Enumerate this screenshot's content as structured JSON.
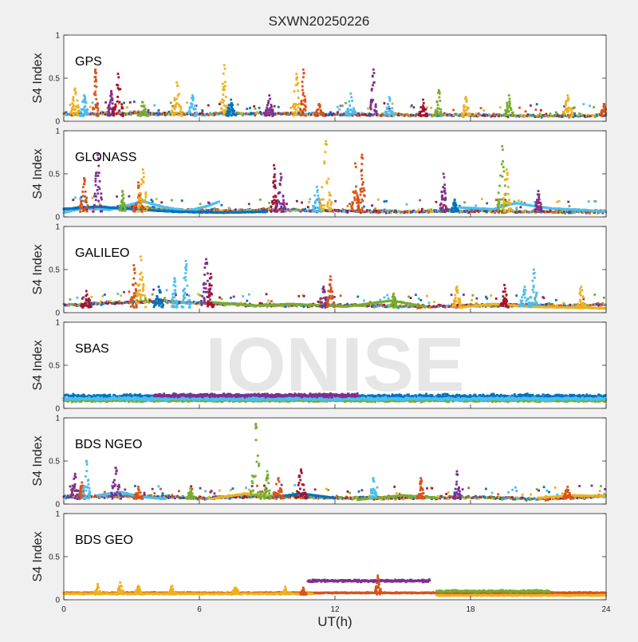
{
  "figure": {
    "title": "SXWN20250226",
    "xlabel": "UT(h)",
    "watermark": "IONISE",
    "background": "#f0f0f0",
    "axes_background": "#ffffff"
  },
  "chart_data": [
    {
      "type": "scatter",
      "panel_label": "GPS",
      "ylabel": "S4 Index",
      "xlim": [
        0,
        24
      ],
      "ylim": [
        0,
        1
      ],
      "xticks": [],
      "yticks": [
        "0",
        "0.5",
        "1"
      ],
      "grid": false,
      "colors": [
        "#0072bd",
        "#d95319",
        "#edb120",
        "#7e2f8e",
        "#77ac30",
        "#4dbeee",
        "#a2142f"
      ],
      "baseline": [
        [
          0,
          0.07
        ],
        [
          3,
          0.08
        ],
        [
          6,
          0.07
        ],
        [
          9,
          0.08
        ],
        [
          12,
          0.07
        ],
        [
          15,
          0.06
        ],
        [
          18,
          0.06
        ],
        [
          21,
          0.05
        ],
        [
          24,
          0.06
        ]
      ],
      "spikes": [
        {
          "x": 0.5,
          "peak": 0.38,
          "color": "#edb120"
        },
        {
          "x": 0.9,
          "peak": 0.3,
          "color": "#4dbeee"
        },
        {
          "x": 1.4,
          "peak": 0.6,
          "color": "#d95319"
        },
        {
          "x": 2.1,
          "peak": 0.35,
          "color": "#7e2f8e"
        },
        {
          "x": 2.4,
          "peak": 0.55,
          "color": "#a2142f"
        },
        {
          "x": 3.5,
          "peak": 0.22,
          "color": "#77ac30"
        },
        {
          "x": 5.0,
          "peak": 0.45,
          "color": "#edb120"
        },
        {
          "x": 5.7,
          "peak": 0.3,
          "color": "#4dbeee"
        },
        {
          "x": 7.1,
          "peak": 0.65,
          "color": "#edb120"
        },
        {
          "x": 7.4,
          "peak": 0.25,
          "color": "#0072bd"
        },
        {
          "x": 9.1,
          "peak": 0.3,
          "color": "#7e2f8e"
        },
        {
          "x": 10.3,
          "peak": 0.55,
          "color": "#edb120"
        },
        {
          "x": 10.6,
          "peak": 0.6,
          "color": "#d95319"
        },
        {
          "x": 11.3,
          "peak": 0.2,
          "color": "#d95319"
        },
        {
          "x": 12.7,
          "peak": 0.32,
          "color": "#4dbeee"
        },
        {
          "x": 13.7,
          "peak": 0.6,
          "color": "#7e2f8e"
        },
        {
          "x": 14.4,
          "peak": 0.28,
          "color": "#4dbeee"
        },
        {
          "x": 15.9,
          "peak": 0.25,
          "color": "#a2142f"
        },
        {
          "x": 16.6,
          "peak": 0.36,
          "color": "#77ac30"
        },
        {
          "x": 17.8,
          "peak": 0.28,
          "color": "#edb120"
        },
        {
          "x": 19.7,
          "peak": 0.3,
          "color": "#77ac30"
        },
        {
          "x": 22.3,
          "peak": 0.3,
          "color": "#edb120"
        },
        {
          "x": 23.9,
          "peak": 0.2,
          "color": "#d95319"
        }
      ],
      "smooth_curves": []
    },
    {
      "type": "scatter",
      "panel_label": "GLONASS",
      "ylabel": "S4 Index",
      "xlim": [
        0,
        24
      ],
      "ylim": [
        0,
        1
      ],
      "xticks": [],
      "yticks": [
        "0",
        "0.5",
        "1"
      ],
      "grid": false,
      "colors": [
        "#0072bd",
        "#d95319",
        "#edb120",
        "#7e2f8e",
        "#77ac30",
        "#4dbeee",
        "#a2142f"
      ],
      "baseline": [
        [
          0,
          0.08
        ],
        [
          3,
          0.1
        ],
        [
          6,
          0.06
        ],
        [
          9,
          0.07
        ],
        [
          12,
          0.06
        ],
        [
          15,
          0.05
        ],
        [
          18,
          0.06
        ],
        [
          21,
          0.05
        ],
        [
          24,
          0.05
        ]
      ],
      "spikes": [
        {
          "x": 0.9,
          "peak": 0.45,
          "color": "#d95319"
        },
        {
          "x": 1.5,
          "peak": 0.72,
          "color": "#7e2f8e"
        },
        {
          "x": 2.6,
          "peak": 0.3,
          "color": "#77ac30"
        },
        {
          "x": 3.3,
          "peak": 0.4,
          "color": "#d95319"
        },
        {
          "x": 3.5,
          "peak": 0.55,
          "color": "#edb120"
        },
        {
          "x": 9.3,
          "peak": 0.6,
          "color": "#a2142f"
        },
        {
          "x": 9.6,
          "peak": 0.5,
          "color": "#7e2f8e"
        },
        {
          "x": 11.2,
          "peak": 0.35,
          "color": "#4dbeee"
        },
        {
          "x": 11.6,
          "peak": 0.88,
          "color": "#edb120"
        },
        {
          "x": 12.9,
          "peak": 0.62,
          "color": "#d95319"
        },
        {
          "x": 13.2,
          "peak": 0.72,
          "color": "#d95319"
        },
        {
          "x": 16.8,
          "peak": 0.5,
          "color": "#7e2f8e"
        },
        {
          "x": 17.3,
          "peak": 0.2,
          "color": "#0072bd"
        },
        {
          "x": 19.4,
          "peak": 0.82,
          "color": "#77ac30"
        },
        {
          "x": 19.6,
          "peak": 0.55,
          "color": "#edb120"
        },
        {
          "x": 21.0,
          "peak": 0.3,
          "color": "#7e2f8e"
        }
      ],
      "smooth_curves": [
        {
          "color": "#4dbeee",
          "points": [
            [
              0,
              0.05
            ],
            [
              1,
              0.11
            ],
            [
              2,
              0.08
            ],
            [
              3.5,
              0.18
            ],
            [
              4.5,
              0.11
            ],
            [
              5.5,
              0.07
            ],
            [
              6.4,
              0.13
            ],
            [
              6.9,
              0.18
            ]
          ]
        },
        {
          "color": "#4dbeee",
          "points": [
            [
              17.5,
              0.11
            ],
            [
              19,
              0.09
            ],
            [
              20,
              0.16
            ],
            [
              21.5,
              0.1
            ],
            [
              23,
              0.08
            ],
            [
              24,
              0.06
            ]
          ]
        },
        {
          "color": "#0072bd",
          "points": [
            [
              0,
              0.09
            ],
            [
              1.5,
              0.12
            ],
            [
              3,
              0.09
            ],
            [
              5,
              0.06
            ],
            [
              7,
              0.05
            ],
            [
              9,
              0.06
            ]
          ]
        }
      ]
    },
    {
      "type": "scatter",
      "panel_label": "GALILEO",
      "ylabel": "S4 Index",
      "xlim": [
        0,
        24
      ],
      "ylim": [
        0,
        1
      ],
      "xticks": [],
      "yticks": [
        "0",
        "0.5",
        "1"
      ],
      "grid": false,
      "colors": [
        "#0072bd",
        "#d95319",
        "#edb120",
        "#7e2f8e",
        "#77ac30",
        "#4dbeee",
        "#a2142f"
      ],
      "baseline": [
        [
          0,
          0.08
        ],
        [
          2,
          0.1
        ],
        [
          4,
          0.12
        ],
        [
          6,
          0.1
        ],
        [
          8,
          0.08
        ],
        [
          10,
          0.07
        ],
        [
          12,
          0.08
        ],
        [
          14,
          0.07
        ],
        [
          16,
          0.06
        ],
        [
          18,
          0.07
        ],
        [
          20,
          0.08
        ],
        [
          22,
          0.07
        ],
        [
          24,
          0.08
        ]
      ],
      "spikes": [
        {
          "x": 1.0,
          "peak": 0.25,
          "color": "#a2142f"
        },
        {
          "x": 3.1,
          "peak": 0.55,
          "color": "#d95319"
        },
        {
          "x": 3.4,
          "peak": 0.65,
          "color": "#edb120"
        },
        {
          "x": 4.2,
          "peak": 0.3,
          "color": "#0072bd"
        },
        {
          "x": 4.9,
          "peak": 0.4,
          "color": "#4dbeee"
        },
        {
          "x": 5.4,
          "peak": 0.6,
          "color": "#4dbeee"
        },
        {
          "x": 6.3,
          "peak": 0.62,
          "color": "#7e2f8e"
        },
        {
          "x": 6.5,
          "peak": 0.45,
          "color": "#a2142f"
        },
        {
          "x": 11.5,
          "peak": 0.3,
          "color": "#7e2f8e"
        },
        {
          "x": 11.8,
          "peak": 0.42,
          "color": "#d95319"
        },
        {
          "x": 14.6,
          "peak": 0.22,
          "color": "#77ac30"
        },
        {
          "x": 17.4,
          "peak": 0.3,
          "color": "#edb120"
        },
        {
          "x": 19.5,
          "peak": 0.32,
          "color": "#a2142f"
        },
        {
          "x": 20.4,
          "peak": 0.3,
          "color": "#4dbeee"
        },
        {
          "x": 20.8,
          "peak": 0.5,
          "color": "#4dbeee"
        },
        {
          "x": 22.9,
          "peak": 0.3,
          "color": "#edb120"
        }
      ],
      "smooth_curves": [
        {
          "color": "#77ac30",
          "points": [
            [
              6.5,
              0.12
            ],
            [
              8.5,
              0.08
            ],
            [
              10,
              0.1
            ],
            [
              12.5,
              0.07
            ],
            [
              14.5,
              0.14
            ],
            [
              16,
              0.07
            ]
          ]
        },
        {
          "color": "#edb120",
          "points": [
            [
              17.5,
              0.06
            ],
            [
              19,
              0.1
            ],
            [
              20.5,
              0.07
            ],
            [
              22,
              0.06
            ],
            [
              24,
              0.05
            ]
          ]
        }
      ]
    },
    {
      "type": "scatter",
      "panel_label": "SBAS",
      "ylabel": "S4 Index",
      "xlim": [
        0,
        24
      ],
      "ylim": [
        0,
        1
      ],
      "xticks": [],
      "yticks": [
        "0",
        "0.5",
        "1"
      ],
      "grid": false,
      "colors": [
        "#0072bd",
        "#4dbeee",
        "#77ac30",
        "#7e2f8e"
      ],
      "bands": [
        {
          "color": "#77ac30",
          "level": 0.09,
          "spread": 0.02
        },
        {
          "color": "#0072bd",
          "level": 0.14,
          "spread": 0.035
        },
        {
          "color": "#4dbeee",
          "level": 0.11,
          "spread": 0.025
        },
        {
          "color": "#7e2f8e",
          "level": 0.15,
          "spread": 0.03,
          "from": 4,
          "to": 13
        }
      ]
    },
    {
      "type": "scatter",
      "panel_label": "BDS NGEO",
      "ylabel": "S4 Index",
      "xlim": [
        0,
        24
      ],
      "ylim": [
        0,
        1
      ],
      "xticks": [],
      "yticks": [
        "0",
        "0.5",
        "1"
      ],
      "grid": false,
      "colors": [
        "#0072bd",
        "#d95319",
        "#edb120",
        "#7e2f8e",
        "#77ac30",
        "#4dbeee",
        "#a2142f"
      ],
      "baseline": [
        [
          0,
          0.07
        ],
        [
          3,
          0.08
        ],
        [
          6,
          0.06
        ],
        [
          9,
          0.08
        ],
        [
          12,
          0.06
        ],
        [
          15,
          0.06
        ],
        [
          18,
          0.07
        ],
        [
          21,
          0.05
        ],
        [
          24,
          0.08
        ]
      ],
      "spikes": [
        {
          "x": 0.5,
          "peak": 0.35,
          "color": "#7e2f8e"
        },
        {
          "x": 0.8,
          "peak": 0.25,
          "color": "#d95319"
        },
        {
          "x": 1.0,
          "peak": 0.5,
          "color": "#4dbeee"
        },
        {
          "x": 2.3,
          "peak": 0.42,
          "color": "#7e2f8e"
        },
        {
          "x": 3.3,
          "peak": 0.2,
          "color": "#d95319"
        },
        {
          "x": 5.6,
          "peak": 0.18,
          "color": "#77ac30"
        },
        {
          "x": 8.5,
          "peak": 0.93,
          "color": "#77ac30"
        },
        {
          "x": 9.0,
          "peak": 0.38,
          "color": "#77ac30"
        },
        {
          "x": 9.5,
          "peak": 0.3,
          "color": "#d95319"
        },
        {
          "x": 10.5,
          "peak": 0.4,
          "color": "#a2142f"
        },
        {
          "x": 13.7,
          "peak": 0.3,
          "color": "#4dbeee"
        },
        {
          "x": 15.8,
          "peak": 0.3,
          "color": "#d95319"
        },
        {
          "x": 17.4,
          "peak": 0.38,
          "color": "#7e2f8e"
        },
        {
          "x": 22.3,
          "peak": 0.2,
          "color": "#d95319"
        }
      ],
      "smooth_curves": [
        {
          "color": "#4dbeee",
          "points": [
            [
              1.5,
              0.1
            ],
            [
              2.5,
              0.14
            ],
            [
              3.5,
              0.08
            ],
            [
              4.5,
              0.06
            ]
          ]
        },
        {
          "color": "#edb120",
          "points": [
            [
              6.5,
              0.06
            ],
            [
              8,
              0.12
            ],
            [
              9.5,
              0.08
            ]
          ]
        },
        {
          "color": "#0072bd",
          "points": [
            [
              9,
              0.07
            ],
            [
              10.5,
              0.12
            ],
            [
              12,
              0.07
            ]
          ]
        },
        {
          "color": "#77ac30",
          "points": [
            [
              13,
              0.05
            ],
            [
              15,
              0.1
            ],
            [
              16.5,
              0.07
            ]
          ]
        },
        {
          "color": "#edb120",
          "points": [
            [
              21,
              0.07
            ],
            [
              22.5,
              0.1
            ],
            [
              24,
              0.09
            ]
          ]
        }
      ]
    },
    {
      "type": "scatter",
      "panel_label": "BDS GEO",
      "ylabel": "S4 Index",
      "xlabel": "UT(h)",
      "xlim": [
        0,
        24
      ],
      "ylim": [
        0,
        1
      ],
      "xticks": [
        "0",
        "6",
        "12",
        "18",
        "24"
      ],
      "yticks": [
        "0",
        "0.5",
        "1"
      ],
      "grid": false,
      "colors": [
        "#d95319",
        "#edb120",
        "#7e2f8e",
        "#77ac30"
      ],
      "bands": [
        {
          "color": "#d95319",
          "level": 0.08,
          "spread": 0.01
        },
        {
          "color": "#edb120",
          "level": 0.07,
          "spread": 0.01,
          "from": 0,
          "to": 11
        },
        {
          "color": "#edb120",
          "level": 0.05,
          "spread": 0.008,
          "from": 16.5,
          "to": 24
        },
        {
          "color": "#7e2f8e",
          "level": 0.22,
          "spread": 0.02,
          "from": 10.8,
          "to": 16.2
        },
        {
          "color": "#77ac30",
          "level": 0.1,
          "spread": 0.015,
          "from": 16.5,
          "to": 21.5
        }
      ],
      "spikes": [
        {
          "x": 1.5,
          "peak": 0.18,
          "color": "#edb120"
        },
        {
          "x": 2.5,
          "peak": 0.2,
          "color": "#edb120"
        },
        {
          "x": 3.3,
          "peak": 0.16,
          "color": "#edb120"
        },
        {
          "x": 4.8,
          "peak": 0.16,
          "color": "#edb120"
        },
        {
          "x": 7.6,
          "peak": 0.14,
          "color": "#edb120"
        },
        {
          "x": 9.8,
          "peak": 0.15,
          "color": "#edb120"
        },
        {
          "x": 10.6,
          "peak": 0.14,
          "color": "#d95319"
        },
        {
          "x": 13.9,
          "peak": 0.28,
          "color": "#d95319"
        }
      ]
    }
  ]
}
